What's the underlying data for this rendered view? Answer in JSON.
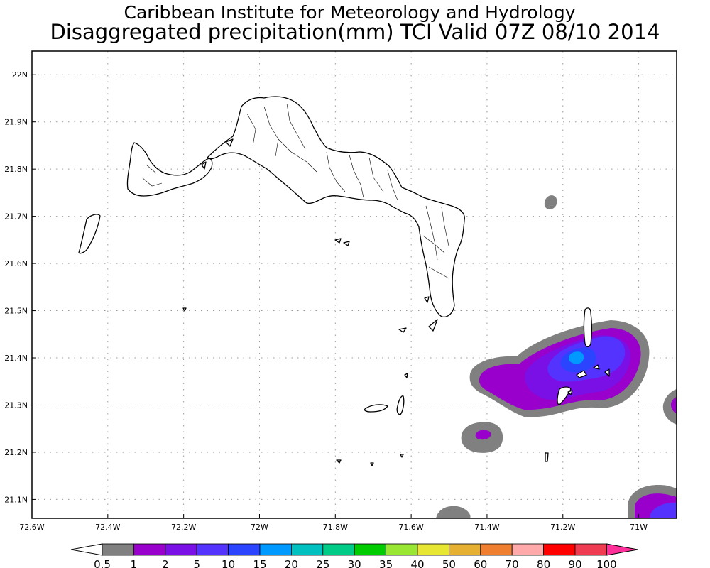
{
  "header": {
    "line1": "Caribbean Institute for Meteorology and Hydrology",
    "line2": "Disaggregated precipitation(mm) TCI Valid 07Z 08/10 2014"
  },
  "map": {
    "lon_range": [
      -72.6,
      -70.9
    ],
    "lat_range": [
      21.06,
      22.05
    ],
    "lat_ticks": [
      {
        "value": 22.0,
        "label": "22N"
      },
      {
        "value": 21.9,
        "label": "21.9N"
      },
      {
        "value": 21.8,
        "label": "21.8N"
      },
      {
        "value": 21.7,
        "label": "21.7N"
      },
      {
        "value": 21.6,
        "label": "21.6N"
      },
      {
        "value": 21.5,
        "label": "21.5N"
      },
      {
        "value": 21.4,
        "label": "21.4N"
      },
      {
        "value": 21.3,
        "label": "21.3N"
      },
      {
        "value": 21.2,
        "label": "21.2N"
      },
      {
        "value": 21.1,
        "label": "21.1N"
      }
    ],
    "lon_ticks": [
      {
        "value": -72.6,
        "label": "72.6W"
      },
      {
        "value": -72.4,
        "label": "72.4W"
      },
      {
        "value": -72.2,
        "label": "72.2W"
      },
      {
        "value": -72.0,
        "label": "72W"
      },
      {
        "value": -71.8,
        "label": "71.8W"
      },
      {
        "value": -71.6,
        "label": "71.6W"
      },
      {
        "value": -71.4,
        "label": "71.4W"
      },
      {
        "value": -71.2,
        "label": "71.2W"
      },
      {
        "value": -71.0,
        "label": "71W"
      }
    ],
    "grid": true,
    "land_outline_color": "#000000"
  },
  "precipitation": {
    "units": "mm",
    "levels": [
      "0.5",
      "1",
      "2",
      "5",
      "10",
      "15",
      "20",
      "25",
      "30",
      "35",
      "40",
      "50",
      "60",
      "70",
      "80",
      "90",
      "100"
    ],
    "colors": [
      "#ffffff",
      "#808080",
      "#9900cc",
      "#7a10e6",
      "#5533ff",
      "#2a44ff",
      "#0099ff",
      "#00c0c0",
      "#00cc88",
      "#00cc00",
      "#99e633",
      "#e6e633",
      "#e6b033",
      "#f08030",
      "#ffaaaa",
      "#ff0000",
      "#f03c50",
      "#ff2f9a"
    ]
  }
}
